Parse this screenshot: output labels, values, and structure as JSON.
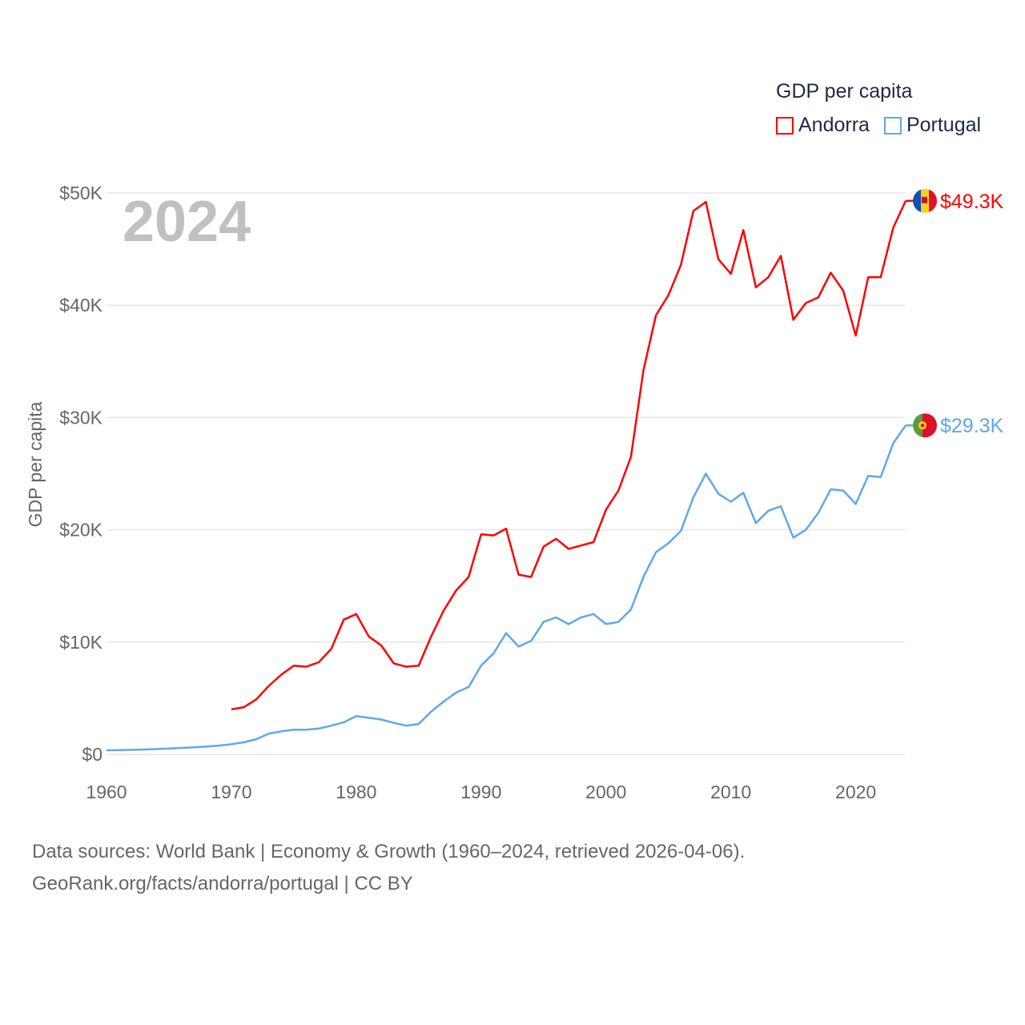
{
  "chart_data": {
    "type": "line",
    "title": "GDP per capita",
    "ylabel": "GDP per capita",
    "xlabel": "",
    "year_badge": "2024",
    "xlim": [
      1960,
      2024
    ],
    "ylim": [
      0,
      50
    ],
    "x_ticks": [
      "1960",
      "1970",
      "1980",
      "1990",
      "2000",
      "2010",
      "2020"
    ],
    "y_ticks": [
      {
        "value": 0,
        "label": "$0"
      },
      {
        "value": 10,
        "label": "$10K"
      },
      {
        "value": 20,
        "label": "$20K"
      },
      {
        "value": 30,
        "label": "$30K"
      },
      {
        "value": 40,
        "label": "$40K"
      },
      {
        "value": 50,
        "label": "$50K"
      }
    ],
    "grid": true,
    "legend_placement": "top-right",
    "series": [
      {
        "name": "Andorra",
        "color": "#ff0000",
        "start_year": 1970,
        "end_label": "$49.3K",
        "flag": "andorra-flag",
        "values": [
          4.0,
          4.2,
          4.9,
          6.1,
          7.1,
          7.9,
          7.8,
          8.2,
          9.4,
          12.0,
          12.5,
          10.5,
          9.7,
          8.1,
          7.8,
          7.9,
          10.5,
          12.8,
          14.6,
          15.8,
          19.6,
          19.5,
          20.1,
          16.0,
          15.8,
          18.5,
          19.2,
          18.3,
          18.6,
          18.9,
          21.8,
          23.5,
          26.5,
          34.2,
          39.1,
          40.9,
          43.6,
          48.4,
          49.2,
          44.1,
          42.8,
          46.7,
          41.6,
          42.5,
          44.4,
          38.7,
          40.2,
          40.7,
          42.9,
          41.3,
          37.3,
          42.5,
          42.5,
          46.9,
          49.3
        ]
      },
      {
        "name": "Portugal",
        "color": "#5ea8ec",
        "start_year": 1960,
        "end_label": "$29.3K",
        "flag": "portugal-flag",
        "values": [
          0.36,
          0.38,
          0.4,
          0.43,
          0.47,
          0.52,
          0.57,
          0.63,
          0.7,
          0.78,
          0.9,
          1.07,
          1.35,
          1.85,
          2.05,
          2.2,
          2.2,
          2.3,
          2.55,
          2.85,
          3.4,
          3.25,
          3.1,
          2.8,
          2.55,
          2.7,
          3.8,
          4.7,
          5.5,
          6.0,
          7.9,
          9.0,
          10.8,
          9.6,
          10.1,
          11.8,
          12.2,
          11.6,
          12.2,
          12.5,
          11.6,
          11.8,
          12.9,
          15.8,
          18.0,
          18.8,
          19.9,
          22.9,
          25.0,
          23.2,
          22.5,
          23.3,
          20.6,
          21.7,
          22.1,
          19.3,
          20.0,
          21.5,
          23.6,
          23.5,
          22.3,
          24.8,
          24.7,
          27.7,
          29.3
        ]
      }
    ]
  },
  "footer": {
    "line1": "Data sources: World Bank | Economy & Growth (1960–2024, retrieved 2026-04-06).",
    "line2": "GeoRank.org/facts/andorra/portugal | CC BY"
  }
}
